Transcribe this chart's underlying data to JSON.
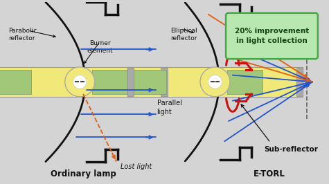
{
  "bg_color": "#d4d4d4",
  "title_left": "Ordinary lamp",
  "title_right": "E-TORL",
  "label_lost": "Lost light",
  "label_parallel": "Parallel\nlight",
  "label_burner": "Burner\nelement",
  "label_parabolic": "Parabolic\nreflector",
  "label_elliptical": "Elliptical\nreflector",
  "label_subreflector": "Sub-reflector",
  "label_improvement": "20% improvement\nin light collection",
  "blue": "#2255cc",
  "orange": "#e06010",
  "red": "#cc1111",
  "yellow_lamp": "#f0e878",
  "green_tube": "#a0c878",
  "black": "#111111",
  "improvement_bg": "#b8e8b0",
  "improvement_border": "#44aa44",
  "improvement_text": "#114411"
}
